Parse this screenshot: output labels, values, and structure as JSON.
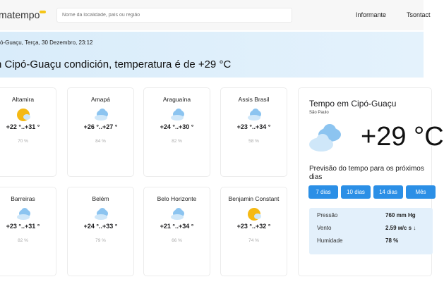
{
  "header": {
    "logo": "matempo",
    "search_placeholder": "Nome da localidade, país ou região",
    "nav": [
      "Informante",
      "Tsontact"
    ]
  },
  "breadcrumb": "ó-Guaçu, Terça, 30 Dezembro, 23:12",
  "page_title": "n Cipó-Guaçu condición, temperatura é de +29 °C",
  "cities": [
    {
      "name": "Altamira",
      "icon": "sun-cloud-icon",
      "temp": "+22 °..+31 °",
      "humidity": "70 %"
    },
    {
      "name": "Amapá",
      "icon": "cloud-icon",
      "temp": "+26 °..+27 °",
      "humidity": "84 %"
    },
    {
      "name": "Araguaína",
      "icon": "cloud-icon",
      "temp": "+24 °..+30 °",
      "humidity": "82 %"
    },
    {
      "name": "Assis Brasil",
      "icon": "cloud-icon",
      "temp": "+23 °..+34 °",
      "humidity": "58 %"
    },
    {
      "name": "Barreiras",
      "icon": "cloud-icon",
      "temp": "+23 °..+31 °",
      "humidity": "82 %"
    },
    {
      "name": "Belém",
      "icon": "cloud-icon",
      "temp": "+24 °..+33 °",
      "humidity": "79 %"
    },
    {
      "name": "Belo Horizonte",
      "icon": "cloud-icon",
      "temp": "+21 °..+34 °",
      "humidity": "66 %"
    },
    {
      "name": "Benjamin Constant",
      "icon": "sun-cloud-icon",
      "temp": "+23 °..+32 °",
      "humidity": "74 %"
    }
  ],
  "panel": {
    "title": "Tempo em Cipó-Guaçu",
    "region": "São Paulo",
    "temp": "+29 °C",
    "forecast_label": "Previsão do tempo para os próximos dias",
    "buttons": [
      "7 dias",
      "10 dias",
      "14 dias",
      "Mês"
    ],
    "stats": [
      {
        "label": "Pressão",
        "value": "760 mm Hg"
      },
      {
        "label": "Vento",
        "value": "2.59 м/с s ↓"
      },
      {
        "label": "Humidade",
        "value": "78 %"
      }
    ]
  },
  "colors": {
    "accent": "#2b8fe6",
    "band": "#dceefb",
    "sun": "#f5b914",
    "cloud": "#8cc4f0"
  }
}
